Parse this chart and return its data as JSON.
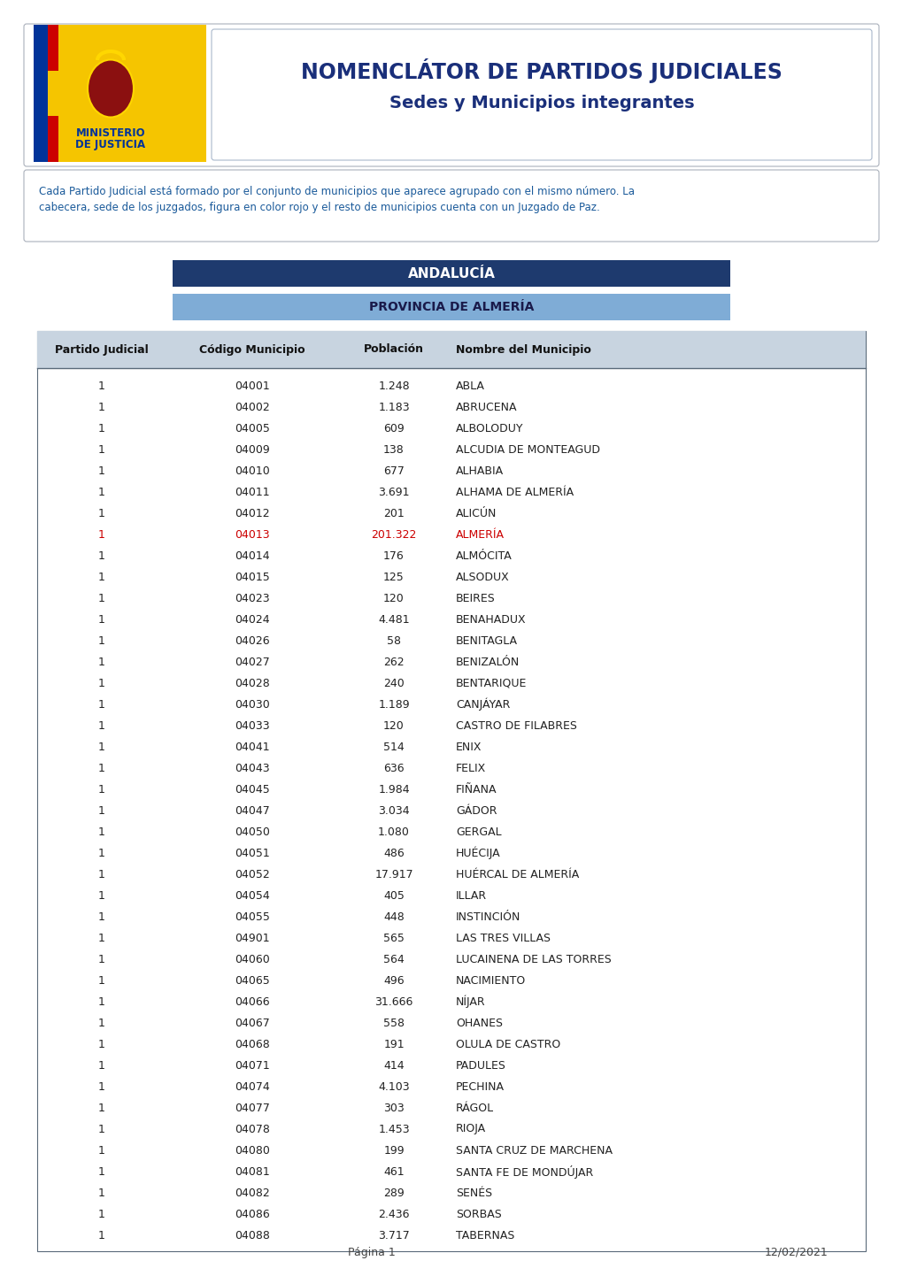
{
  "title_line1": "NOMENCLÁTOR DE PARTIDOS JUDICIALES",
  "title_line2": "Sedes y Municipios integrantes",
  "description_line1": "Cada Partido Judicial está formado por el conjunto de municipios que aparece agrupado con el mismo número. La",
  "description_line2": "cabecera, sede de los juzgados, figura en color rojo y el resto de municipios cuenta con un Juzgado de Paz.",
  "region_label": "ANDALUCÍA",
  "province_label": "PROVINCIA DE ALMERÍA",
  "col_headers": [
    "Partido Judicial",
    "Código Municipio",
    "Población",
    "Nombre del Municipio"
  ],
  "rows": [
    [
      "1",
      "04001",
      "1.248",
      "ABLA",
      false
    ],
    [
      "1",
      "04002",
      "1.183",
      "ABRUCENA",
      false
    ],
    [
      "1",
      "04005",
      "609",
      "ALBOLODUY",
      false
    ],
    [
      "1",
      "04009",
      "138",
      "ALCUDIA DE MONTEAGUD",
      false
    ],
    [
      "1",
      "04010",
      "677",
      "ALHABIA",
      false
    ],
    [
      "1",
      "04011",
      "3.691",
      "ALHAMA DE ALMERÍA",
      false
    ],
    [
      "1",
      "04012",
      "201",
      "ALICÚN",
      false
    ],
    [
      "1",
      "04013",
      "201.322",
      "ALMERÍA",
      true
    ],
    [
      "1",
      "04014",
      "176",
      "ALMÓCITA",
      false
    ],
    [
      "1",
      "04015",
      "125",
      "ALSODUX",
      false
    ],
    [
      "1",
      "04023",
      "120",
      "BEIRES",
      false
    ],
    [
      "1",
      "04024",
      "4.481",
      "BENAHADUX",
      false
    ],
    [
      "1",
      "04026",
      "58",
      "BENITAGLA",
      false
    ],
    [
      "1",
      "04027",
      "262",
      "BENIZALÓN",
      false
    ],
    [
      "1",
      "04028",
      "240",
      "BENTARIQUE",
      false
    ],
    [
      "1",
      "04030",
      "1.189",
      "CANJÁYAR",
      false
    ],
    [
      "1",
      "04033",
      "120",
      "CASTRO DE FILABRES",
      false
    ],
    [
      "1",
      "04041",
      "514",
      "ENIX",
      false
    ],
    [
      "1",
      "04043",
      "636",
      "FELIX",
      false
    ],
    [
      "1",
      "04045",
      "1.984",
      "FIÑANA",
      false
    ],
    [
      "1",
      "04047",
      "3.034",
      "GÁDOR",
      false
    ],
    [
      "1",
      "04050",
      "1.080",
      "GERGAL",
      false
    ],
    [
      "1",
      "04051",
      "486",
      "HUÉCIJA",
      false
    ],
    [
      "1",
      "04052",
      "17.917",
      "HUÉRCAL DE ALMERÍA",
      false
    ],
    [
      "1",
      "04054",
      "405",
      "ILLAR",
      false
    ],
    [
      "1",
      "04055",
      "448",
      "INSTINCIÓN",
      false
    ],
    [
      "1",
      "04901",
      "565",
      "LAS TRES VILLAS",
      false
    ],
    [
      "1",
      "04060",
      "564",
      "LUCAINENA DE LAS TORRES",
      false
    ],
    [
      "1",
      "04065",
      "496",
      "NACIMIENTO",
      false
    ],
    [
      "1",
      "04066",
      "31.666",
      "NÍJAR",
      false
    ],
    [
      "1",
      "04067",
      "558",
      "OHANES",
      false
    ],
    [
      "1",
      "04068",
      "191",
      "OLULA DE CASTRO",
      false
    ],
    [
      "1",
      "04071",
      "414",
      "PADULES",
      false
    ],
    [
      "1",
      "04074",
      "4.103",
      "PECHINA",
      false
    ],
    [
      "1",
      "04077",
      "303",
      "RÁGOL",
      false
    ],
    [
      "1",
      "04078",
      "1.453",
      "RIOJA",
      false
    ],
    [
      "1",
      "04080",
      "199",
      "SANTA CRUZ DE MARCHENA",
      false
    ],
    [
      "1",
      "04081",
      "461",
      "SANTA FE DE MONDÚJAR",
      false
    ],
    [
      "1",
      "04082",
      "289",
      "SENÉS",
      false
    ],
    [
      "1",
      "04086",
      "2.436",
      "SORBAS",
      false
    ],
    [
      "1",
      "04088",
      "3.717",
      "TABERNAS",
      false
    ]
  ],
  "footer_page": "Página 1",
  "footer_date": "12/02/2021",
  "bg_color": "#ffffff",
  "header_box_dark": "#1e3a6e",
  "province_box_color": "#7facd6",
  "table_header_bg": "#c8d4e0",
  "table_border_color": "#5a6a7a",
  "red_color": "#cc0000",
  "title_color": "#1a2f7a",
  "description_color": "#1a5a9a",
  "outer_box_stroke": "#aab0bb",
  "logo_yellow": "#f5c500",
  "logo_blue": "#003399",
  "logo_red": "#cc0000"
}
